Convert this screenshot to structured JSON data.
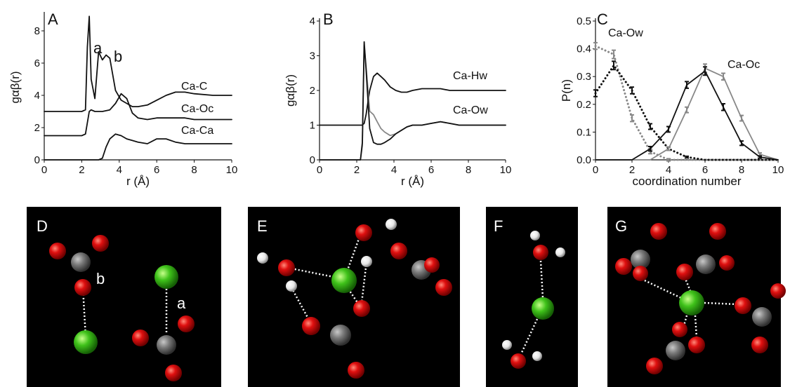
{
  "chart_data": [
    {
      "type": "line",
      "label": "A",
      "xlabel": "r (Å)",
      "ylabel": "gαβ(r)",
      "x": [
        0,
        1,
        2,
        2.2,
        2.3,
        2.4,
        2.5,
        2.7,
        2.9,
        3.1,
        3.3,
        3.5,
        3.8,
        4.1,
        4.4,
        4.7,
        5,
        5.5,
        6,
        6.5,
        7,
        7.5,
        8,
        9,
        10
      ],
      "xlim": [
        0,
        10
      ],
      "xticks": [
        0,
        2,
        4,
        6,
        8,
        10
      ],
      "ylim": [
        0,
        9
      ],
      "yticks": [
        0,
        2,
        4,
        6,
        8
      ],
      "annotations": [
        "a",
        "b"
      ],
      "series": [
        {
          "name": "Ca-C",
          "color": "#111111",
          "values": [
            3,
            3,
            3,
            3.1,
            7,
            8.9,
            5,
            3.8,
            6.7,
            6.2,
            6.5,
            6.3,
            4.3,
            3.7,
            3.5,
            3.3,
            3.3,
            3.4,
            3.7,
            4.0,
            4.2,
            4.2,
            4.1,
            4.0,
            4.0
          ]
        },
        {
          "name": "Ca-Oc",
          "color": "#111111",
          "values": [
            1.5,
            1.5,
            1.5,
            1.6,
            2.3,
            3.0,
            3.1,
            3.0,
            3.0,
            3.0,
            3.05,
            3.1,
            3.5,
            4.1,
            3.8,
            2.9,
            2.6,
            2.5,
            2.6,
            2.6,
            2.6,
            2.6,
            2.5,
            2.5,
            2.5
          ]
        },
        {
          "name": "Ca-Ca",
          "color": "#111111",
          "values": [
            0,
            0,
            0,
            0,
            0,
            0,
            0,
            0,
            0,
            0.1,
            0.8,
            1.3,
            1.6,
            1.5,
            1.3,
            1.2,
            1.1,
            1.0,
            1.3,
            1.3,
            1.1,
            1.0,
            1.0,
            1.0,
            1.0
          ]
        }
      ]
    },
    {
      "type": "line",
      "label": "B",
      "xlabel": "r (Å)",
      "ylabel": "gαβ(r)",
      "x": [
        0,
        1,
        2,
        2.2,
        2.3,
        2.4,
        2.5,
        2.7,
        2.9,
        3.1,
        3.3,
        3.5,
        3.8,
        4.1,
        4.4,
        4.7,
        5,
        5.5,
        6,
        6.5,
        7,
        7.5,
        8,
        9,
        10
      ],
      "xlim": [
        0,
        10
      ],
      "xticks": [
        0,
        2,
        4,
        6,
        8,
        10
      ],
      "ylim": [
        0,
        4
      ],
      "yticks": [
        0,
        1,
        2,
        3,
        4
      ],
      "series": [
        {
          "name": "Ca-Hw",
          "color": "#111111",
          "values": [
            1,
            1,
            1,
            1,
            1,
            1.05,
            1.3,
            2.0,
            2.4,
            2.5,
            2.4,
            2.3,
            2.1,
            2.0,
            1.95,
            1.95,
            2.0,
            2.05,
            2.05,
            2.05,
            2.0,
            2.0,
            2.0,
            2.0,
            2.0
          ]
        },
        {
          "color": "#888888",
          "values": [
            0,
            0,
            0,
            0,
            0.4,
            3.3,
            2.7,
            1.4,
            1.3,
            1.1,
            0.9,
            0.8,
            0.7,
            0.75,
            0.85,
            0.95,
            1.0,
            1.0,
            1.05,
            1.1,
            1.05,
            1.0,
            1.0,
            1.0,
            1.0
          ]
        },
        {
          "name": "Ca-Ow",
          "color": "#111111",
          "values": [
            0,
            0,
            0,
            0,
            0.5,
            3.4,
            2.6,
            0.9,
            0.5,
            0.45,
            0.45,
            0.5,
            0.6,
            0.75,
            0.85,
            0.95,
            1.0,
            1.0,
            1.05,
            1.1,
            1.05,
            1.0,
            1.0,
            1.0,
            1.0
          ]
        }
      ]
    },
    {
      "type": "line",
      "label": "C",
      "xlabel": "coordination number",
      "ylabel": "P(n)",
      "x": [
        0,
        1,
        2,
        3,
        4,
        5,
        6,
        7,
        8,
        9,
        10
      ],
      "xlim": [
        0,
        10
      ],
      "xticks": [
        0,
        2,
        4,
        6,
        8,
        10
      ],
      "ylim": [
        0,
        0.5
      ],
      "yticks": [
        {
          "value": 0,
          "label": "0.0"
        },
        0.1,
        0.2,
        0.3,
        0.4,
        0.5
      ],
      "series": [
        {
          "name": "Ca-Ow",
          "color": "#888888",
          "style": "dotted",
          "values": [
            0.41,
            0.38,
            0.15,
            0.03,
            0,
            0,
            0,
            0,
            0,
            0,
            0
          ],
          "errors": [
            0.012,
            0.015,
            0.012,
            0.008,
            0.004,
            0,
            0,
            0,
            0,
            0,
            0
          ]
        },
        {
          "color": "#111111",
          "style": "dotted",
          "values": [
            0.24,
            0.34,
            0.25,
            0.12,
            0.04,
            0.01,
            0,
            0,
            0,
            0,
            0
          ],
          "errors": [
            0.012,
            0.015,
            0.012,
            0.01,
            0.006,
            0.003,
            0,
            0,
            0,
            0,
            0
          ]
        },
        {
          "name": "Ca-Oc",
          "color": "#888888",
          "style": "solid",
          "values": [
            0,
            0,
            0,
            0,
            0.04,
            0.18,
            0.33,
            0.3,
            0.15,
            0.02,
            0
          ],
          "errors": [
            0,
            0,
            0,
            0,
            0.006,
            0.01,
            0.015,
            0.012,
            0.01,
            0.005,
            0
          ]
        },
        {
          "color": "#111111",
          "style": "solid",
          "values": [
            0,
            0,
            0,
            0.04,
            0.11,
            0.27,
            0.32,
            0.19,
            0.06,
            0.01,
            0
          ],
          "errors": [
            0,
            0,
            0,
            0.008,
            0.01,
            0.012,
            0.015,
            0.012,
            0.008,
            0.004,
            0
          ]
        }
      ]
    }
  ],
  "panels": [
    {
      "label": "D",
      "annotations": [
        "b",
        "a"
      ]
    },
    {
      "label": "E"
    },
    {
      "label": "F"
    },
    {
      "label": "G"
    }
  ]
}
